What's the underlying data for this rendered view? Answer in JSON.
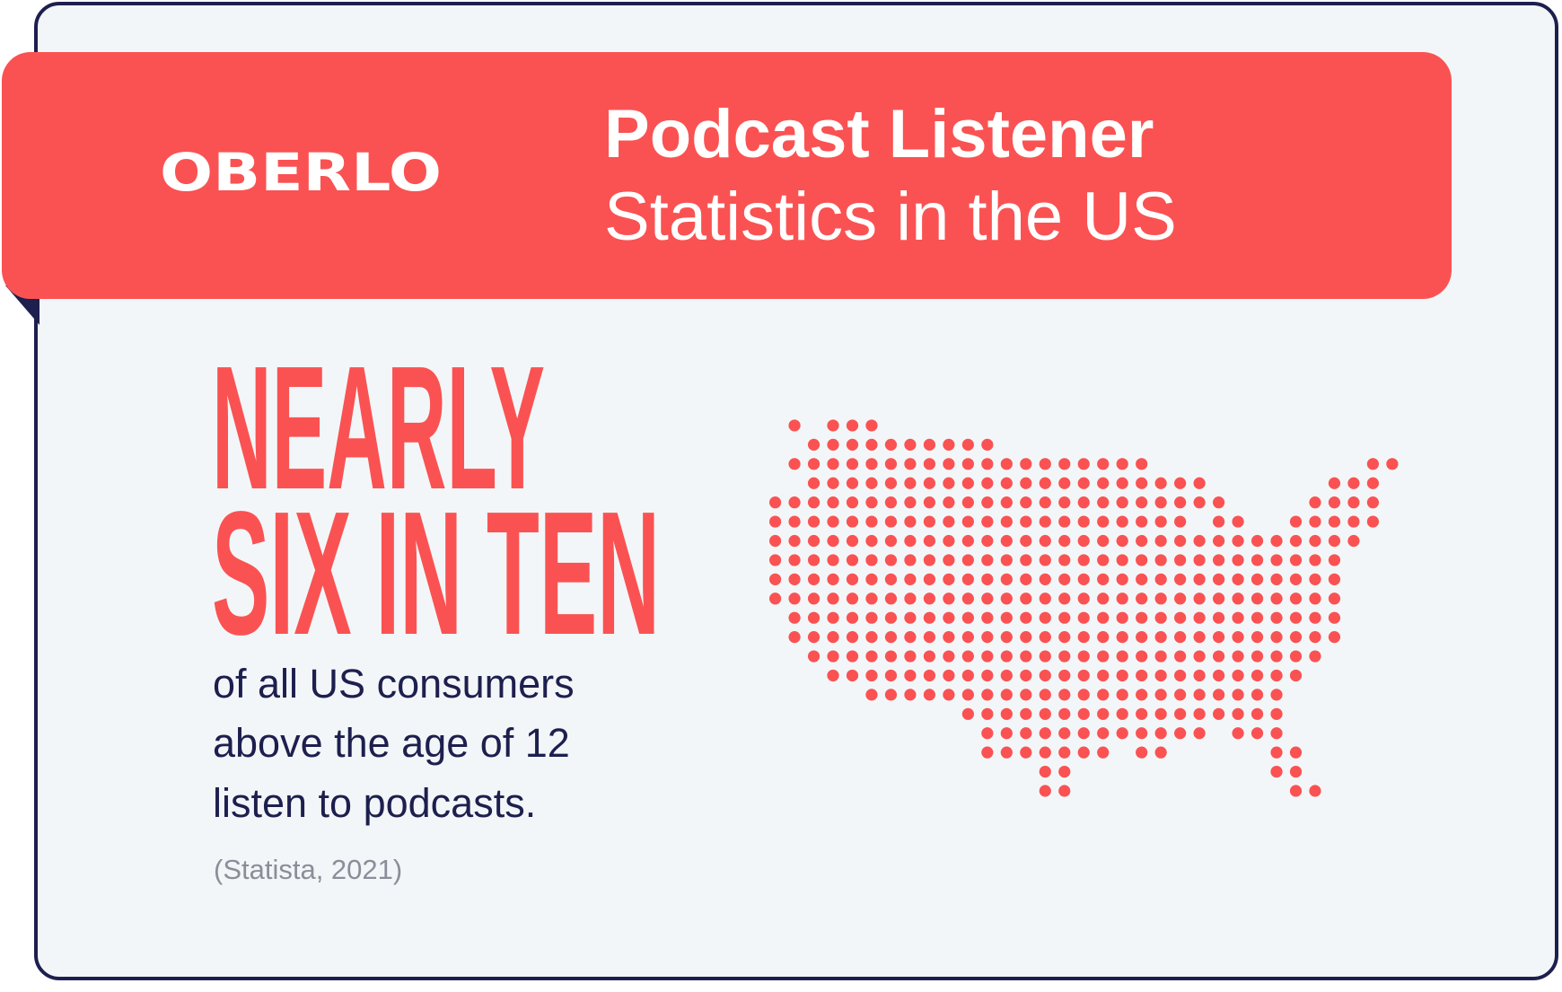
{
  "header": {
    "logo": "OBERLO",
    "title_line1": "Podcast Listener",
    "title_line2": "Statistics in the US"
  },
  "headline": {
    "line1": "NEARLY",
    "line2": "SIX IN TEN"
  },
  "body": {
    "lines": [
      "of all US consumers",
      "above the age of 12",
      "listen to podcasts."
    ]
  },
  "source": "(Statista, 2021)"
}
